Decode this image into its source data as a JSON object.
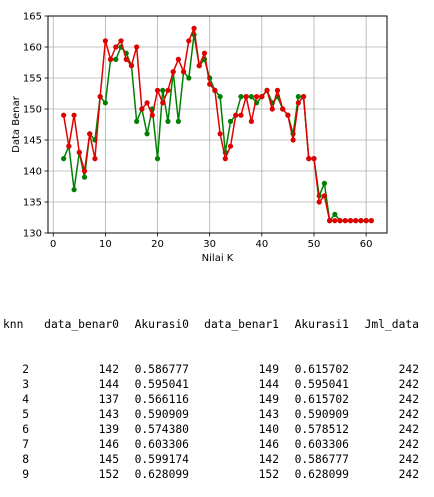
{
  "chart_data": {
    "type": "line",
    "title": "",
    "xlabel": "Nilai K",
    "ylabel": "Data Benar",
    "xlim": [
      -1,
      64
    ],
    "ylim": [
      130,
      165
    ],
    "xticks": [
      0,
      10,
      20,
      30,
      40,
      50,
      60
    ],
    "yticks": [
      130,
      135,
      140,
      145,
      150,
      155,
      160,
      165
    ],
    "grid": true,
    "x": [
      2,
      3,
      4,
      5,
      6,
      7,
      8,
      9,
      10,
      11,
      12,
      13,
      14,
      15,
      16,
      17,
      18,
      19,
      20,
      21,
      22,
      23,
      24,
      25,
      26,
      27,
      28,
      29,
      30,
      31,
      32,
      33,
      34,
      35,
      36,
      37,
      38,
      39,
      40,
      41,
      42,
      43,
      44,
      45,
      46,
      47,
      48,
      49,
      50,
      51,
      52,
      53,
      54,
      55,
      56,
      57,
      58,
      59,
      60,
      61
    ],
    "series": [
      {
        "color": "#008000",
        "values": [
          142,
          144,
          137,
          143,
          139,
          146,
          145,
          152,
          151,
          158,
          158,
          160,
          159,
          157,
          148,
          150,
          146,
          150,
          142,
          153,
          148,
          156,
          148,
          156,
          155,
          162,
          157,
          158,
          155,
          153,
          152,
          143,
          148,
          149,
          152,
          152,
          152,
          151,
          152,
          153,
          151,
          152,
          150,
          149,
          146,
          152,
          152,
          142,
          142,
          136,
          138,
          132,
          133,
          132,
          132,
          132,
          132,
          132,
          132,
          132
        ]
      },
      {
        "color": "#e00000",
        "values": [
          149,
          144,
          149,
          143,
          140,
          146,
          142,
          152,
          161,
          158,
          160,
          161,
          158,
          157,
          160,
          150,
          151,
          149,
          153,
          151,
          153,
          156,
          158,
          156,
          161,
          163,
          157,
          159,
          154,
          153,
          146,
          142,
          144,
          149,
          149,
          152,
          148,
          152,
          152,
          153,
          150,
          153,
          150,
          149,
          145,
          151,
          152,
          142,
          142,
          135,
          136,
          132,
          132,
          132,
          132,
          132,
          132,
          132,
          132,
          132
        ]
      }
    ]
  },
  "table": {
    "headers": [
      "knn",
      "data_benar0",
      "Akurasi0",
      "data_benar1",
      "Akurasi1",
      "Jml_data"
    ],
    "rows": [
      [
        "2",
        "142",
        "0.586777",
        "149",
        "0.615702",
        "242"
      ],
      [
        "3",
        "144",
        "0.595041",
        "144",
        "0.595041",
        "242"
      ],
      [
        "4",
        "137",
        "0.566116",
        "149",
        "0.615702",
        "242"
      ],
      [
        "5",
        "143",
        "0.590909",
        "143",
        "0.590909",
        "242"
      ],
      [
        "6",
        "139",
        "0.574380",
        "140",
        "0.578512",
        "242"
      ],
      [
        "7",
        "146",
        "0.603306",
        "146",
        "0.603306",
        "242"
      ],
      [
        "8",
        "145",
        "0.599174",
        "142",
        "0.586777",
        "242"
      ],
      [
        "9",
        "152",
        "0.628099",
        "152",
        "0.628099",
        "242"
      ]
    ]
  }
}
